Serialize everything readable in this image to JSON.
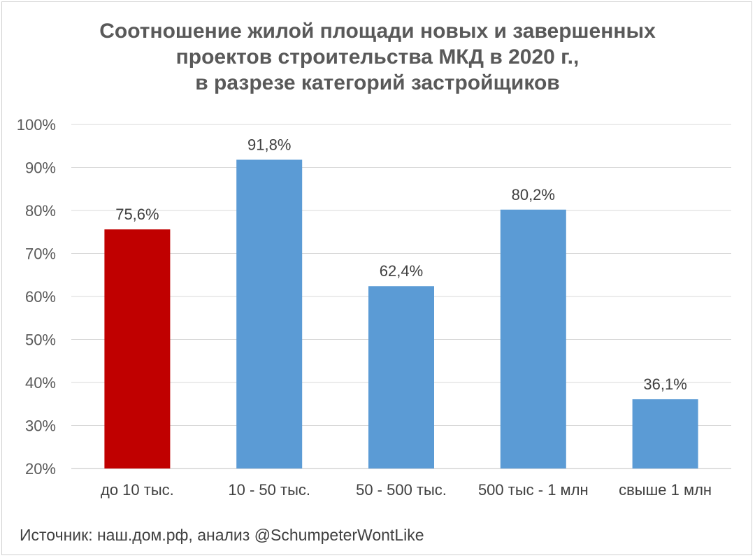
{
  "chart_data": {
    "type": "bar",
    "title_lines": [
      "Соотношение жилой площади новых и завершенных",
      "проектов строительства МКД в 2020 г.,",
      "в разрезе категорий застройщиков"
    ],
    "categories": [
      "до 10 тыс.",
      "10 - 50 тыс.",
      "50 - 500 тыс.",
      "500 тыс - 1 млн",
      "свыше 1 млн"
    ],
    "values": [
      75.6,
      91.8,
      62.4,
      80.2,
      36.1
    ],
    "data_labels": [
      "75,6%",
      "91,8%",
      "62,4%",
      "80,2%",
      "36,1%"
    ],
    "bar_colors": [
      "#c00000",
      "#5b9bd5",
      "#5b9bd5",
      "#5b9bd5",
      "#5b9bd5"
    ],
    "ylim": [
      20,
      100
    ],
    "yticks": [
      20,
      30,
      40,
      50,
      60,
      70,
      80,
      90,
      100
    ],
    "ytick_labels": [
      "20%",
      "30%",
      "40%",
      "50%",
      "60%",
      "70%",
      "80%",
      "90%",
      "100%"
    ],
    "grid": true,
    "legend": "none"
  },
  "footer": {
    "source": "Источник: наш.дом.рф, анализ @SchumpeterWontLike"
  }
}
